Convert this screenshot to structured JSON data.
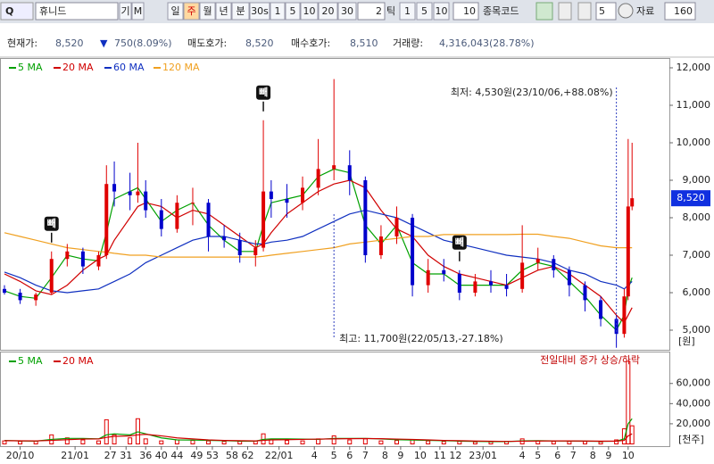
{
  "toolbar": {
    "stock_name": "휴니드",
    "buttons": [
      "기",
      "M"
    ],
    "periods": [
      "일",
      "주",
      "월",
      "년",
      "분",
      "30s",
      "1",
      "5",
      "10",
      "20",
      "30"
    ],
    "selected_period": "주",
    "tick_count": "2",
    "tick_label": "틱",
    "tick_buttons": [
      "1",
      "5",
      "10"
    ],
    "tick_input": "10",
    "code_label": "종목코드",
    "count": "5",
    "data_label": "자료",
    "data_count": "160"
  },
  "quote": {
    "items": [
      {
        "label": "현재가:",
        "value": "8,520"
      },
      {
        "label": "▼",
        "value": "750(8.09%)"
      },
      {
        "label": "매도호가:",
        "value": "8,520"
      },
      {
        "label": "매수호가:",
        "value": "8,510"
      },
      {
        "label": "거래량:",
        "value": "4,316,043(28.78%)"
      }
    ]
  },
  "chart_data": [
    {
      "type": "candlestick",
      "unit": "[원]",
      "up_color": "#e00000",
      "down_color": "#0000cc",
      "x": [
        0,
        4,
        8,
        12,
        16,
        20,
        24,
        26,
        28,
        32,
        34,
        36,
        40,
        44,
        48,
        52,
        56,
        60,
        64,
        66,
        68,
        72,
        76,
        80,
        84,
        88,
        92,
        96,
        100,
        104,
        108,
        112,
        116,
        120,
        124,
        128,
        132,
        136,
        140,
        144,
        148,
        152,
        156,
        158,
        159,
        160
      ],
      "open": [
        6100,
        6000,
        5800,
        6000,
        6900,
        7100,
        6700,
        7000,
        8900,
        8700,
        8600,
        8700,
        8200,
        7700,
        8400,
        8400,
        7500,
        7400,
        7000,
        7200,
        8700,
        8500,
        8400,
        8800,
        9300,
        9400,
        9000,
        7000,
        7500,
        8000,
        6200,
        6600,
        6500,
        6000,
        6300,
        6200,
        6100,
        6800,
        6900,
        6600,
        6200,
        5800,
        5300,
        4900,
        5900,
        8300
      ],
      "high": [
        6200,
        6100,
        6000,
        7100,
        7300,
        7200,
        7100,
        9400,
        9500,
        9200,
        10000,
        9000,
        8500,
        8600,
        8800,
        8500,
        7800,
        7600,
        7400,
        10600,
        9000,
        8900,
        9100,
        10100,
        11700,
        9800,
        9100,
        7800,
        8300,
        8100,
        6900,
        6900,
        6600,
        6500,
        6600,
        6500,
        7800,
        7200,
        7000,
        6700,
        6300,
        5900,
        5400,
        6100,
        10100,
        10000
      ],
      "low": [
        5950,
        5700,
        5650,
        5950,
        6700,
        6500,
        6600,
        6900,
        8300,
        8200,
        8400,
        8000,
        7500,
        7600,
        7800,
        7100,
        7200,
        6800,
        6700,
        7100,
        8000,
        8000,
        8200,
        8600,
        9000,
        8600,
        6800,
        6900,
        7300,
        5900,
        6000,
        6300,
        5800,
        5900,
        6000,
        5900,
        6000,
        6600,
        6400,
        5900,
        5500,
        5100,
        4530,
        4800,
        5800,
        8200
      ],
      "close": [
        6000,
        5800,
        5950,
        6900,
        7100,
        6700,
        7000,
        8900,
        8700,
        8600,
        8700,
        8200,
        7700,
        8400,
        8400,
        7500,
        7400,
        7000,
        7200,
        8700,
        8500,
        8400,
        8800,
        9300,
        9400,
        9000,
        7000,
        7500,
        8000,
        6200,
        6600,
        6500,
        6000,
        6300,
        6200,
        6100,
        6800,
        6900,
        6600,
        6200,
        5800,
        5300,
        4900,
        5900,
        8300,
        8520
      ],
      "series": [
        {
          "name": "5 MA",
          "color": "#00a000",
          "values": [
            6050,
            5900,
            5850,
            6400,
            7000,
            6900,
            6850,
            7600,
            8500,
            8700,
            8800,
            8500,
            7900,
            8200,
            8400,
            7800,
            7400,
            7100,
            7100,
            7800,
            8400,
            8500,
            8600,
            9100,
            9300,
            9200,
            7800,
            7300,
            7800,
            6800,
            6500,
            6500,
            6200,
            6200,
            6200,
            6200,
            6600,
            6800,
            6700,
            6300,
            5900,
            5400,
            5000,
            5400,
            6100,
            6400
          ]
        },
        {
          "name": "20 MA",
          "color": "#d00000",
          "values": [
            6500,
            6300,
            6050,
            5950,
            6200,
            6600,
            6900,
            7000,
            7400,
            8000,
            8300,
            8400,
            8300,
            8000,
            8200,
            8100,
            7800,
            7500,
            7200,
            7300,
            7600,
            8100,
            8400,
            8700,
            8900,
            9000,
            8800,
            8200,
            7700,
            7500,
            7000,
            6700,
            6500,
            6400,
            6300,
            6200,
            6400,
            6600,
            6700,
            6500,
            6200,
            5900,
            5400,
            5200,
            5400,
            5600
          ]
        },
        {
          "name": "60 MA",
          "color": "#1030c0",
          "values": [
            6550,
            6400,
            6200,
            6050,
            6000,
            6050,
            6100,
            6200,
            6300,
            6500,
            6650,
            6800,
            7000,
            7200,
            7400,
            7500,
            7500,
            7400,
            7300,
            7300,
            7350,
            7400,
            7500,
            7700,
            7900,
            8100,
            8200,
            8100,
            8000,
            7800,
            7600,
            7400,
            7300,
            7200,
            7100,
            7000,
            6950,
            6900,
            6800,
            6600,
            6500,
            6300,
            6200,
            6100,
            6200,
            6300
          ]
        },
        {
          "name": "120 MA",
          "color": "#f0a020",
          "values": [
            7600,
            7500,
            7400,
            7300,
            7200,
            7150,
            7100,
            7080,
            7050,
            7000,
            7000,
            7000,
            6950,
            6950,
            6950,
            6950,
            6950,
            6950,
            6950,
            6970,
            7000,
            7050,
            7100,
            7150,
            7200,
            7300,
            7350,
            7400,
            7450,
            7500,
            7500,
            7550,
            7550,
            7550,
            7550,
            7550,
            7560,
            7560,
            7500,
            7450,
            7350,
            7250,
            7200,
            7200,
            7200,
            7200
          ]
        }
      ],
      "xlim": [
        0,
        162
      ],
      "xticks": [
        {
          "value": 4,
          "label": "20/10"
        },
        {
          "value": 18,
          "label": "21/01"
        },
        27,
        31,
        36,
        40,
        44,
        49,
        53,
        58,
        62,
        {
          "value": 70,
          "label": "22/01"
        },
        {
          "value": 79,
          "label": "4"
        },
        {
          "value": 84,
          "label": "5"
        },
        {
          "value": 88,
          "label": "6"
        },
        {
          "value": 92,
          "label": "7"
        },
        {
          "value": 97,
          "label": "8"
        },
        {
          "value": 101,
          "label": "9"
        },
        {
          "value": 106,
          "label": "10"
        },
        {
          "value": 111,
          "label": "11"
        },
        {
          "value": 115,
          "label": "12"
        },
        {
          "value": 122,
          "label": "23/01"
        },
        {
          "value": 132,
          "label": "4"
        },
        {
          "value": 136,
          "label": "5"
        },
        {
          "value": 141,
          "label": "6"
        },
        {
          "value": 145,
          "label": "7"
        },
        {
          "value": 150,
          "label": "8"
        },
        {
          "value": 154,
          "label": "9"
        },
        {
          "value": 159,
          "label": "10"
        }
      ],
      "ylim": [
        4600,
        12200
      ],
      "yticks": [
        {
          "value": 5000,
          "label": "5,000"
        },
        {
          "value": 6000,
          "label": "6,000"
        },
        {
          "value": 7000,
          "label": "7,000"
        },
        {
          "value": 8000,
          "label": "8,000"
        },
        {
          "value": 9000,
          "label": "9,000"
        },
        {
          "value": 10000,
          "label": "10,000"
        },
        {
          "value": 11000,
          "label": "11,000"
        },
        {
          "value": 12000,
          "label": "12,000"
        }
      ],
      "last_price": {
        "value": 8520,
        "label": "8,520"
      },
      "annotations": [
        {
          "text": "최저: 4,530원(23/10/06,+88.08%)",
          "x": 156,
          "position": "top"
        },
        {
          "text": "최고: 11,700원(22/05/13,-27.18%)",
          "x": 84,
          "position": "bottom"
        }
      ],
      "signals": [
        {
          "label": "빼",
          "x": 12
        },
        {
          "label": "빼",
          "x": 66
        },
        {
          "label": "빼",
          "x": 116
        }
      ]
    },
    {
      "type": "bar",
      "unit": "[천주]",
      "color": "#e00000",
      "note": "전일대비 증가 상승/하락",
      "values": [
        3000,
        2500,
        3000,
        9000,
        6000,
        4000,
        3000,
        24000,
        9000,
        6000,
        25000,
        5000,
        3000,
        4000,
        3500,
        3000,
        2500,
        2500,
        3000,
        10000,
        4000,
        3500,
        3000,
        5000,
        8000,
        4000,
        5000,
        3000,
        3500,
        4000,
        3000,
        2500,
        2500,
        2000,
        2000,
        2500,
        5000,
        3000,
        2500,
        2500,
        2500,
        2000,
        4000,
        15000,
        82000,
        18000
      ],
      "series": [
        {
          "name": "5 MA",
          "color": "#00a000",
          "values": [
            3500,
            3000,
            2800,
            4500,
            5500,
            5500,
            5000,
            9000,
            10000,
            9000,
            12000,
            10000,
            6000,
            4000,
            3800,
            3500,
            3200,
            2800,
            2800,
            4500,
            5000,
            5000,
            4800,
            4500,
            5500,
            5500,
            5500,
            5000,
            4200,
            3800,
            3500,
            3200,
            2800,
            2500,
            2300,
            2300,
            3000,
            3200,
            3000,
            2900,
            2800,
            2500,
            2700,
            5000,
            20000,
            25000
          ]
        },
        {
          "name": "20 MA",
          "color": "#d00000",
          "values": [
            3200,
            3100,
            3000,
            3500,
            4200,
            4800,
            5000,
            6500,
            7500,
            8000,
            9000,
            9500,
            8000,
            6000,
            5000,
            4000,
            3500,
            3200,
            3000,
            3500,
            4000,
            4200,
            4500,
            4800,
            5000,
            5200,
            5300,
            5200,
            4800,
            4500,
            4000,
            3500,
            3200,
            2900,
            2700,
            2500,
            2700,
            2900,
            3000,
            3000,
            2900,
            2800,
            2800,
            3500,
            8000,
            10000
          ]
        }
      ],
      "ylim": [
        0,
        89000
      ],
      "yticks": [
        {
          "value": 20000,
          "label": "20,000"
        },
        {
          "value": 40000,
          "label": "40,000"
        },
        {
          "value": 60000,
          "label": "60,000"
        }
      ]
    }
  ]
}
